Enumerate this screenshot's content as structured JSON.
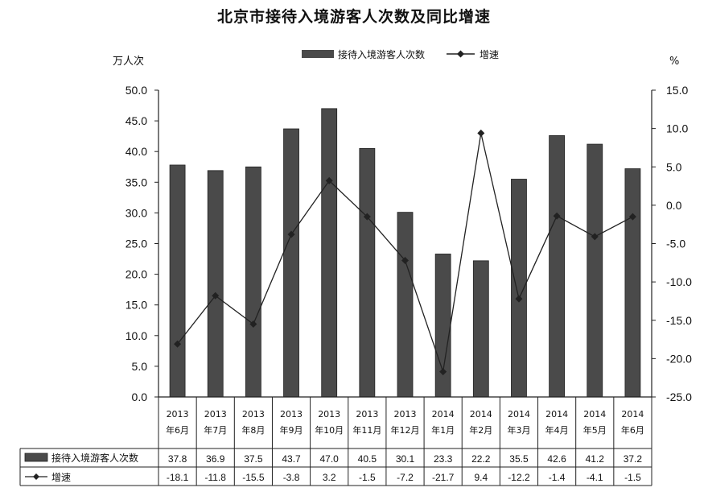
{
  "title": "北京市接待入境游客人次数及同比增速",
  "colors": {
    "bar": "#4a4a4a",
    "line": "#222222",
    "axis": "#222222",
    "grid": "#999999"
  },
  "chart_data": {
    "type": "bar",
    "title": "北京市接待入境游客人次数及同比增速",
    "left_unit": "万人次",
    "right_unit": "%",
    "categories": [
      [
        "2013",
        "年6月"
      ],
      [
        "2013",
        "年7月"
      ],
      [
        "2013",
        "年8月"
      ],
      [
        "2013",
        "年9月"
      ],
      [
        "2013",
        "年10月"
      ],
      [
        "2013",
        "年11月"
      ],
      [
        "2013",
        "年12月"
      ],
      [
        "2014",
        "年1月"
      ],
      [
        "2014",
        "年2月"
      ],
      [
        "2014",
        "年3月"
      ],
      [
        "2014",
        "年4月"
      ],
      [
        "2014",
        "年5月"
      ],
      [
        "2014",
        "年6月"
      ]
    ],
    "series": [
      {
        "name": "接待入境游客人次数",
        "type": "bar",
        "axis": "left",
        "values": [
          37.8,
          36.9,
          37.5,
          43.7,
          47.0,
          40.5,
          30.1,
          23.3,
          22.2,
          35.5,
          42.6,
          41.2,
          37.2
        ],
        "labels": [
          "37.8",
          "36.9",
          "37.5",
          "43.7",
          "47.0",
          "40.5",
          "30.1",
          "23.3",
          "22.2",
          "35.5",
          "42.6",
          "41.2",
          "37.2"
        ]
      },
      {
        "name": "增速",
        "type": "line",
        "axis": "right",
        "values": [
          -18.1,
          -11.8,
          -15.5,
          -3.8,
          3.2,
          -1.5,
          -7.2,
          -21.7,
          9.4,
          -12.2,
          -1.4,
          -4.1,
          -1.5
        ],
        "labels": [
          "-18.1",
          "-11.8",
          "-15.5",
          "-3.8",
          "3.2",
          "-1.5",
          "-7.2",
          "-21.7",
          "9.4",
          "-12.2",
          "-1.4",
          "-4.1",
          "-1.5"
        ]
      }
    ],
    "ylim_left": [
      0,
      50
    ],
    "yticks_left": [
      "0.0",
      "5.0",
      "10.0",
      "15.0",
      "20.0",
      "25.0",
      "30.0",
      "35.0",
      "40.0",
      "45.0",
      "50.0"
    ],
    "ylim_right": [
      -25,
      15
    ],
    "yticks_right": [
      "-25.0",
      "-20.0",
      "-15.0",
      "-10.0",
      "-5.0",
      "0.0",
      "5.0",
      "10.0",
      "15.0"
    ],
    "grid": false,
    "legend_position": "top-center",
    "data_table": true
  }
}
